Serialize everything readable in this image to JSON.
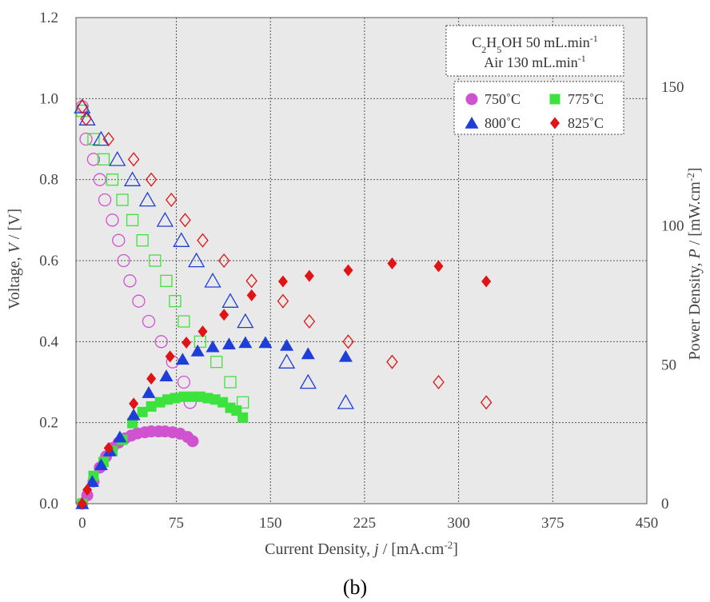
{
  "chart_data": {
    "type": "scatter",
    "caption": "(b)",
    "xlabel_parts": [
      "Current Density, ",
      "j",
      " / [mA.cm",
      "-2",
      "]"
    ],
    "ylabel_parts": [
      "Voltage, ",
      "V",
      " / [V]"
    ],
    "y2label_parts": [
      "Power Density, ",
      "P",
      " / [mW.cm",
      "-2",
      "]"
    ],
    "xlim": [
      -5,
      450
    ],
    "ylim": [
      0,
      1.2
    ],
    "y2lim": [
      0,
      175
    ],
    "x_ticks": [
      "0",
      "75",
      "150",
      "225",
      "300",
      "375",
      "450"
    ],
    "y_ticks": [
      "0.0",
      "0.2",
      "0.4",
      "0.6",
      "0.8",
      "1.0",
      "1.2"
    ],
    "y2_ticks": [
      "0",
      "50",
      "100",
      "150"
    ],
    "grid": true,
    "legend_position": "top-right",
    "conditions": [
      {
        "text": "C",
        "sub": "2",
        "text2": "H",
        "sub2": "5",
        "text3": "OH 50 mL.min",
        "sup": "-1"
      },
      {
        "text": "Air 130 mL.min",
        "sup": "-1"
      }
    ],
    "legend": [
      {
        "label": "750˚C",
        "marker": "circle",
        "color": "#d152d1"
      },
      {
        "label": "775˚C",
        "marker": "square",
        "color": "#3ee23e"
      },
      {
        "label": "800˚C",
        "marker": "triangle",
        "color": "#1d3fd8"
      },
      {
        "label": "825˚C",
        "marker": "diamond",
        "color": "#e01414"
      }
    ],
    "series": [
      {
        "name": "750˚C",
        "marker": "circle",
        "color": "#d152d1",
        "voltage": {
          "x": [
            0,
            3,
            9,
            14,
            18,
            24,
            29,
            33,
            38,
            45,
            53,
            63,
            72,
            81,
            86
          ],
          "y": [
            0.98,
            0.9,
            0.85,
            0.8,
            0.75,
            0.7,
            0.65,
            0.6,
            0.55,
            0.5,
            0.45,
            0.4,
            0.35,
            0.3,
            0.25
          ]
        },
        "power": {
          "x": [
            0,
            4,
            9,
            14,
            19,
            24,
            29,
            34,
            39,
            44,
            50,
            55,
            61,
            66,
            72,
            78,
            84,
            88
          ],
          "y": [
            0,
            3,
            8,
            13,
            17,
            20,
            22,
            23.5,
            24.5,
            25.3,
            25.7,
            26,
            26,
            26,
            25.7,
            25.2,
            24,
            22.5
          ]
        }
      },
      {
        "name": "775˚C",
        "marker": "square",
        "color": "#3ee23e",
        "voltage": {
          "x": [
            0,
            9,
            17,
            24,
            32,
            40,
            48,
            58,
            67,
            74,
            81,
            94,
            107,
            118,
            128
          ],
          "y": [
            0.97,
            0.9,
            0.85,
            0.8,
            0.75,
            0.7,
            0.65,
            0.6,
            0.55,
            0.5,
            0.45,
            0.4,
            0.35,
            0.3,
            0.25
          ]
        },
        "power": {
          "x": [
            0,
            9,
            17,
            24,
            32,
            40,
            48,
            55,
            62,
            68,
            74,
            81,
            88,
            94,
            100,
            106,
            112,
            118,
            123,
            128
          ],
          "y": [
            0,
            10,
            15,
            19,
            23,
            29,
            33,
            35,
            36.5,
            37.5,
            38,
            38.5,
            38.5,
            38.5,
            38,
            37.5,
            36.5,
            34.5,
            33.5,
            31
          ]
        }
      },
      {
        "name": "800˚C",
        "marker": "triangle",
        "color": "#1d3fd8",
        "voltage": {
          "x": [
            0,
            4,
            15,
            28,
            40,
            52,
            66,
            79,
            91,
            104,
            118,
            130,
            163,
            180,
            210
          ],
          "y": [
            0.98,
            0.95,
            0.9,
            0.85,
            0.8,
            0.75,
            0.7,
            0.65,
            0.6,
            0.55,
            0.5,
            0.45,
            0.35,
            0.3,
            0.25
          ]
        },
        "power": {
          "x": [
            0,
            8,
            15,
            22,
            30,
            41,
            53,
            67,
            80,
            92,
            104,
            117,
            130,
            146,
            163,
            180,
            210
          ],
          "y": [
            0,
            8,
            14,
            19,
            24,
            32,
            40,
            46,
            52,
            55,
            56.5,
            57.5,
            58,
            58,
            57,
            54,
            53
          ]
        }
      },
      {
        "name": "825˚C",
        "marker": "diamond",
        "color": "#e01414",
        "voltage": {
          "x": [
            0,
            3,
            21,
            41,
            55,
            71,
            82,
            96,
            113,
            135,
            160,
            181,
            212,
            247,
            284,
            322
          ],
          "y": [
            0.98,
            0.95,
            0.9,
            0.85,
            0.8,
            0.75,
            0.7,
            0.65,
            0.6,
            0.55,
            0.5,
            0.45,
            0.4,
            0.35,
            0.3,
            0.25
          ]
        },
        "power": {
          "x": [
            0,
            4,
            21,
            41,
            55,
            70,
            83,
            96,
            113,
            135,
            160,
            181,
            212,
            247,
            284,
            322
          ],
          "y": [
            0,
            5,
            20,
            36,
            45,
            53,
            58,
            62,
            68,
            75,
            80,
            82,
            84,
            86.5,
            85.5,
            80
          ]
        }
      }
    ]
  }
}
